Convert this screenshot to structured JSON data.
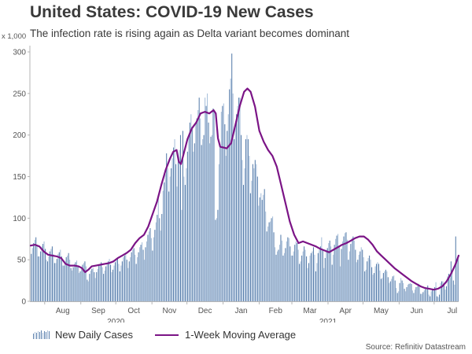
{
  "chart_data": {
    "type": "bar",
    "title": "United States: COVID-19 New Cases",
    "subtitle": "The infection rate is rising again as Delta variant becomes dominant",
    "ylabel": "x 1,000",
    "xlabel": "",
    "ylim": [
      0,
      300
    ],
    "yticks": [
      0,
      50,
      100,
      150,
      200,
      250,
      300
    ],
    "start_date": "2020-07-20",
    "end_date": "2021-07-21",
    "xlim_dates": [
      "2020-07-20",
      "2021-07-21"
    ],
    "month_ticks": [
      {
        "label": "Aug",
        "date": "2020-08-01"
      },
      {
        "label": "Sep",
        "date": "2020-09-01"
      },
      {
        "label": "Oct",
        "date": "2020-10-01"
      },
      {
        "label": "Nov",
        "date": "2020-11-01"
      },
      {
        "label": "Dec",
        "date": "2020-12-01"
      },
      {
        "label": "Jan",
        "date": "2021-01-01"
      },
      {
        "label": "Feb",
        "date": "2021-02-01"
      },
      {
        "label": "Mar",
        "date": "2021-03-01"
      },
      {
        "label": "Apr",
        "date": "2021-04-01"
      },
      {
        "label": "May",
        "date": "2021-05-01"
      },
      {
        "label": "Jun",
        "date": "2021-06-01"
      },
      {
        "label": "Jul",
        "date": "2021-07-01"
      }
    ],
    "year_labels": [
      {
        "label": "2020",
        "date": "2020-10-01"
      },
      {
        "label": "2021",
        "date": "2021-04-01"
      }
    ],
    "grid": false,
    "legend_position": "bottom-left",
    "series": [
      {
        "name": "New Daily Cases",
        "type": "bar",
        "color": "#5b80ad",
        "alt_color": "#a9c0db",
        "values": [
          57,
          64,
          70,
          74,
          77,
          67,
          54,
          54,
          60,
          66,
          69,
          72,
          63,
          50,
          48,
          54,
          60,
          63,
          66,
          57,
          46,
          46,
          51,
          57,
          59,
          62,
          54,
          43,
          43,
          48,
          53,
          55,
          58,
          50,
          40,
          37,
          41,
          45,
          47,
          49,
          43,
          34,
          36,
          40,
          44,
          46,
          48,
          42,
          26,
          24,
          33,
          37,
          39,
          40,
          35,
          28,
          35,
          39,
          43,
          45,
          47,
          41,
          33,
          37,
          42,
          46,
          48,
          51,
          44,
          35,
          38,
          43,
          47,
          50,
          52,
          45,
          36,
          43,
          48,
          53,
          55,
          58,
          50,
          40,
          48,
          53,
          59,
          62,
          64,
          56,
          45,
          53,
          59,
          65,
          68,
          71,
          62,
          50,
          65,
          72,
          80,
          84,
          88,
          76,
          61,
          77,
          86,
          95,
          104,
          126,
          100,
          85,
          105,
          133,
          143,
          153,
          178,
          160,
          132,
          150,
          160,
          172,
          185,
          195,
          165,
          138,
          168,
          182,
          200,
          110,
          205,
          150,
          140,
          160,
          180,
          200,
          215,
          225,
          210,
          180,
          190,
          215,
          220,
          230,
          245,
          220,
          188,
          195,
          200,
          245,
          235,
          250,
          215,
          190,
          198,
          200,
          232,
          228,
          98,
          100,
          110,
          165,
          185,
          228,
          235,
          238,
          213,
          175,
          205,
          225,
          255,
          268,
          298,
          250,
          195,
          210,
          225,
          235,
          245,
          245,
          200,
          170,
          140,
          160,
          195,
          200,
          195,
          175,
          130,
          145,
          165,
          160,
          170,
          165,
          150,
          115,
          125,
          130,
          122,
          128,
          135,
          108,
          84,
          90,
          95,
          96,
          100,
          102,
          83,
          65,
          56,
          60,
          62,
          68,
          80,
          73,
          55,
          58,
          64,
          72,
          77,
          76,
          66,
          55,
          55,
          60,
          68,
          72,
          70,
          62,
          45,
          48,
          55,
          60,
          66,
          62,
          54,
          40,
          46,
          55,
          58,
          60,
          65,
          56,
          36,
          46,
          58,
          62,
          66,
          77,
          62,
          40,
          52,
          62,
          64,
          70,
          73,
          66,
          44,
          56,
          68,
          75,
          79,
          81,
          67,
          42,
          63,
          72,
          78,
          82,
          83,
          74,
          50,
          60,
          69,
          76,
          78,
          73,
          62,
          47,
          50,
          56,
          60,
          65,
          62,
          53,
          36,
          38,
          48,
          52,
          55,
          50,
          41,
          32,
          34,
          42,
          45,
          47,
          45,
          37,
          27,
          28,
          34,
          36,
          38,
          36,
          29,
          22,
          24,
          27,
          30,
          31,
          25,
          16,
          10,
          12,
          22,
          28,
          25,
          22,
          15,
          12,
          17,
          20,
          21,
          22,
          21,
          13,
          10,
          14,
          17,
          18,
          21,
          17,
          9,
          9,
          11,
          13,
          15,
          16,
          19,
          8,
          6,
          12,
          14,
          15,
          17,
          23,
          6,
          5,
          8,
          22,
          24,
          24,
          20,
          14,
          18,
          30,
          33,
          28,
          48,
          38,
          25,
          20,
          78,
          50,
          52
        ]
      },
      {
        "name": "1-Week Moving Average",
        "type": "line",
        "color": "#7b1486",
        "points_day_value": [
          [
            0,
            67
          ],
          [
            4,
            68
          ],
          [
            8,
            66
          ],
          [
            12,
            60
          ],
          [
            16,
            56
          ],
          [
            20,
            55
          ],
          [
            24,
            54
          ],
          [
            28,
            52
          ],
          [
            32,
            45
          ],
          [
            36,
            43
          ],
          [
            40,
            43
          ],
          [
            44,
            42
          ],
          [
            47,
            40
          ],
          [
            50,
            35
          ],
          [
            53,
            38
          ],
          [
            56,
            42
          ],
          [
            60,
            43
          ],
          [
            64,
            44
          ],
          [
            68,
            45
          ],
          [
            72,
            46
          ],
          [
            76,
            48
          ],
          [
            80,
            52
          ],
          [
            84,
            55
          ],
          [
            88,
            58
          ],
          [
            92,
            62
          ],
          [
            96,
            70
          ],
          [
            100,
            76
          ],
          [
            104,
            80
          ],
          [
            108,
            90
          ],
          [
            112,
            105
          ],
          [
            116,
            120
          ],
          [
            120,
            140
          ],
          [
            124,
            158
          ],
          [
            128,
            172
          ],
          [
            131,
            180
          ],
          [
            134,
            182
          ],
          [
            136,
            168
          ],
          [
            138,
            165
          ],
          [
            140,
            175
          ],
          [
            144,
            195
          ],
          [
            148,
            208
          ],
          [
            152,
            215
          ],
          [
            156,
            226
          ],
          [
            160,
            228
          ],
          [
            164,
            226
          ],
          [
            168,
            230
          ],
          [
            170,
            226
          ],
          [
            172,
            196
          ],
          [
            174,
            186
          ],
          [
            180,
            184
          ],
          [
            184,
            190
          ],
          [
            188,
            212
          ],
          [
            192,
            235
          ],
          [
            196,
            252
          ],
          [
            199,
            256
          ],
          [
            202,
            252
          ],
          [
            206,
            234
          ],
          [
            210,
            205
          ],
          [
            214,
            192
          ],
          [
            218,
            182
          ],
          [
            222,
            175
          ],
          [
            226,
            162
          ],
          [
            230,
            140
          ],
          [
            234,
            118
          ],
          [
            238,
            96
          ],
          [
            242,
            80
          ],
          [
            246,
            70
          ],
          [
            250,
            72
          ],
          [
            254,
            70
          ],
          [
            258,
            68
          ],
          [
            262,
            66
          ],
          [
            266,
            63
          ],
          [
            270,
            61
          ],
          [
            274,
            59
          ],
          [
            278,
            62
          ],
          [
            282,
            65
          ],
          [
            286,
            68
          ],
          [
            290,
            70
          ],
          [
            294,
            73
          ],
          [
            298,
            76
          ],
          [
            302,
            78
          ],
          [
            306,
            78
          ],
          [
            310,
            74
          ],
          [
            314,
            68
          ],
          [
            318,
            60
          ],
          [
            322,
            55
          ],
          [
            326,
            50
          ],
          [
            330,
            45
          ],
          [
            334,
            40
          ],
          [
            338,
            36
          ],
          [
            342,
            32
          ],
          [
            346,
            28
          ],
          [
            350,
            24
          ],
          [
            354,
            21
          ],
          [
            358,
            18
          ],
          [
            362,
            16
          ],
          [
            366,
            15
          ],
          [
            370,
            14
          ],
          [
            374,
            15
          ],
          [
            378,
            18
          ],
          [
            382,
            24
          ],
          [
            386,
            33
          ],
          [
            390,
            44
          ],
          [
            393,
            55
          ]
        ]
      }
    ]
  },
  "annotations": {
    "source": "Source: Refinitiv Datastream"
  }
}
